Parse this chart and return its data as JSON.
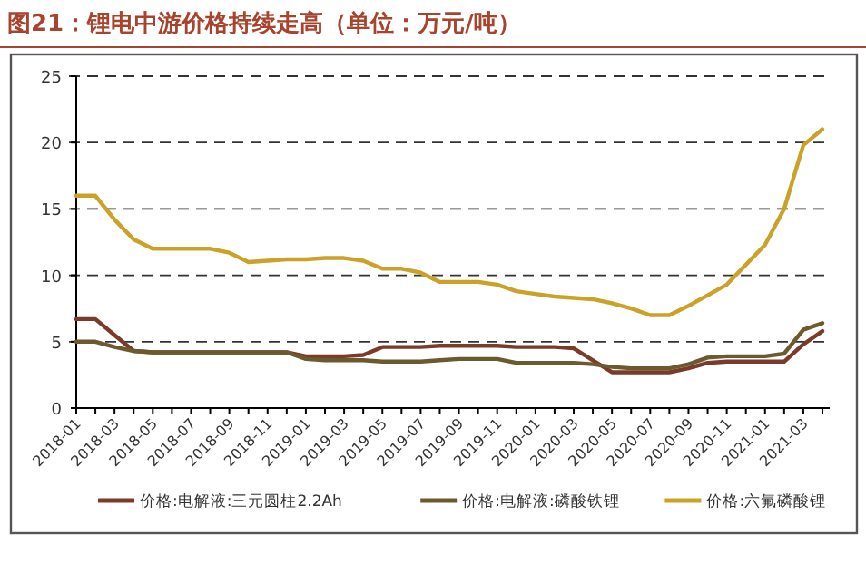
{
  "chart_data": {
    "type": "line",
    "title": "图21：锂电中游价格持续走高（单位：万元/吨）",
    "categories": [
      "2018-01",
      null,
      "2018-03",
      null,
      "2018-05",
      null,
      "2018-07",
      null,
      "2018-09",
      null,
      "2018-11",
      null,
      "2019-01",
      null,
      "2019-03",
      null,
      "2019-05",
      null,
      "2019-07",
      null,
      "2019-09",
      null,
      "2019-11",
      null,
      "2020-01",
      null,
      "2020-03",
      null,
      "2020-05",
      null,
      "2020-07",
      null,
      "2020-09",
      null,
      "2020-11",
      null,
      "2021-01",
      null,
      "2021-03",
      null
    ],
    "series": [
      {
        "name": "价格:电解液:三元圆柱2.2Ah",
        "color": "#7b3b2b",
        "values": [
          6.7,
          6.7,
          5.5,
          4.3,
          4.2,
          4.2,
          4.2,
          4.2,
          4.2,
          4.2,
          4.2,
          4.2,
          3.9,
          3.9,
          3.9,
          4.0,
          4.6,
          4.6,
          4.6,
          4.7,
          4.7,
          4.7,
          4.7,
          4.6,
          4.6,
          4.6,
          4.5,
          3.6,
          2.7,
          2.7,
          2.7,
          2.7,
          3.0,
          3.4,
          3.5,
          3.5,
          3.5,
          3.5,
          4.8,
          5.8
        ]
      },
      {
        "name": "价格:电解液:磷酸铁锂",
        "color": "#6b5a2e",
        "values": [
          5.0,
          5.0,
          4.6,
          4.3,
          4.2,
          4.2,
          4.2,
          4.2,
          4.2,
          4.2,
          4.2,
          4.2,
          3.7,
          3.6,
          3.6,
          3.6,
          3.5,
          3.5,
          3.5,
          3.6,
          3.7,
          3.7,
          3.7,
          3.4,
          3.4,
          3.4,
          3.4,
          3.3,
          3.1,
          3.0,
          3.0,
          3.0,
          3.3,
          3.8,
          3.9,
          3.9,
          3.9,
          4.1,
          5.9,
          6.4
        ]
      },
      {
        "name": "价格:六氟磷酸锂",
        "color": "#c9a227",
        "values": [
          16,
          16,
          14.2,
          12.7,
          12,
          12,
          12,
          12,
          11.7,
          11,
          11.1,
          11.2,
          11.2,
          11.3,
          11.3,
          11.1,
          10.5,
          10.5,
          10.2,
          9.5,
          9.5,
          9.5,
          9.3,
          8.8,
          8.6,
          8.4,
          8.3,
          8.2,
          7.9,
          7.5,
          7,
          7,
          7.7,
          8.5,
          9.3,
          10.8,
          12.3,
          15,
          19.8,
          21
        ]
      }
    ],
    "ylim": [
      0,
      25
    ],
    "yticks": [
      0,
      5,
      10,
      15,
      20,
      25
    ],
    "grid": "y",
    "legend": "bottom",
    "marker": "none",
    "line_style": "solid"
  }
}
